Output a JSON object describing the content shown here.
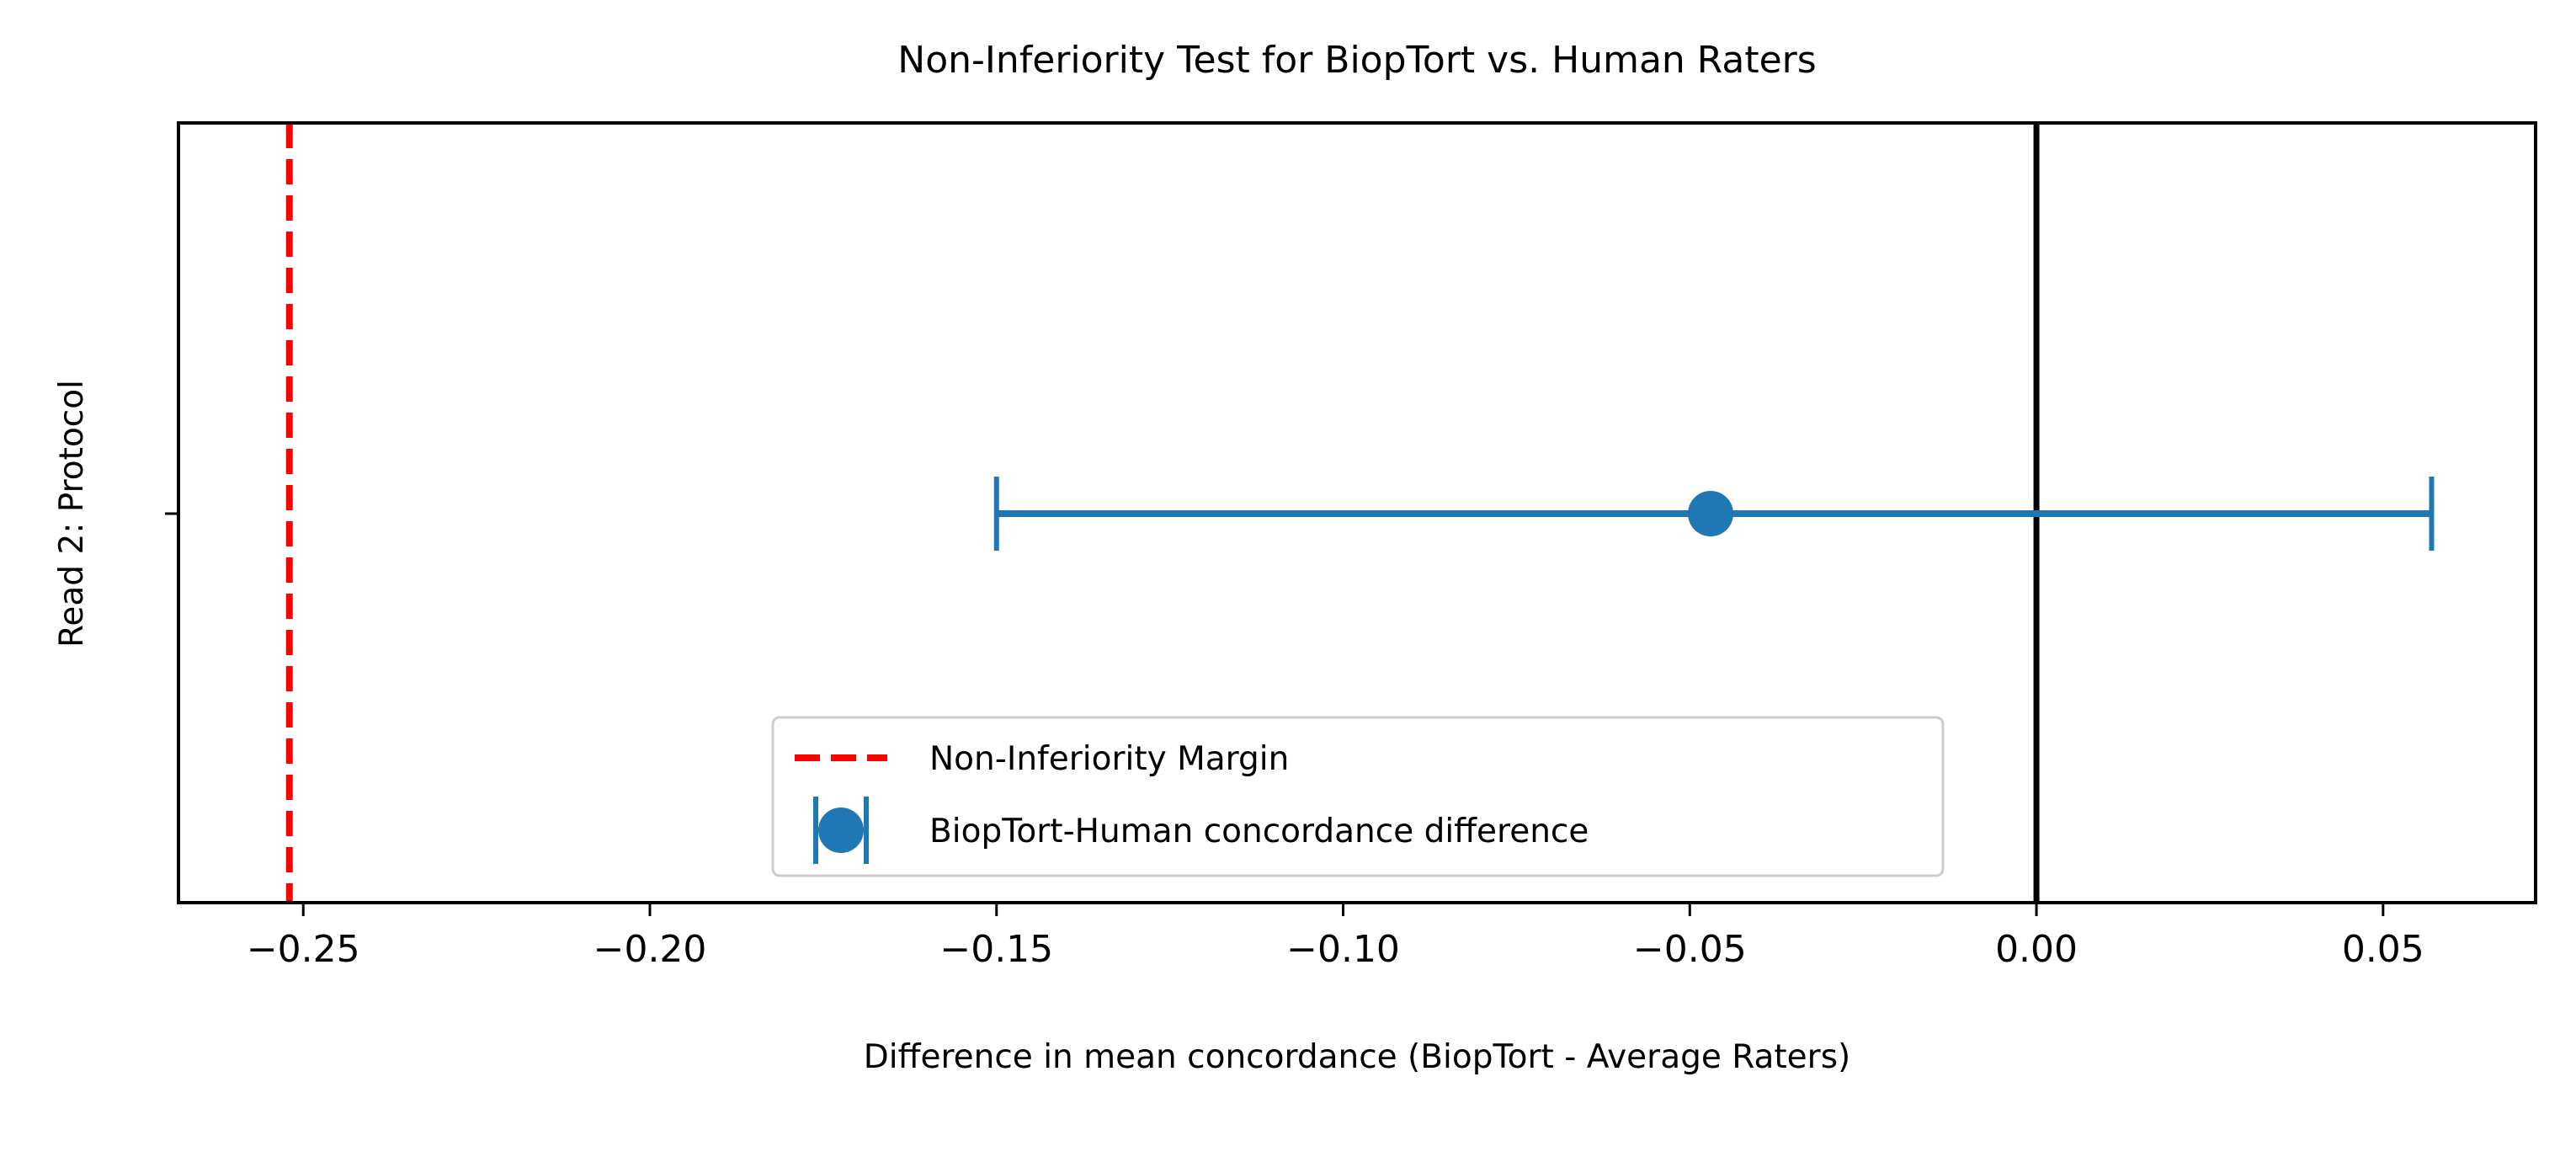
{
  "chart_data": {
    "type": "errorbar",
    "title": "Non-Inferiority Test for BiopTort vs. Human Raters",
    "xlabel": "Difference in mean concordance (BiopTort - Average Raters)",
    "ylabel": "Read 2: Protocol",
    "xlim": [
      -0.268,
      0.072
    ],
    "x_ticks": [
      -0.25,
      -0.2,
      -0.15,
      -0.1,
      -0.05,
      0.0,
      0.05
    ],
    "x_tick_labels": [
      "−0.25",
      "−0.20",
      "−0.15",
      "−0.10",
      "−0.05",
      "0.00",
      "0.05"
    ],
    "grid": false,
    "legend_position": "lower-center",
    "reference_lines": [
      {
        "name": "Non-Inferiority Margin",
        "x": -0.252,
        "style": "dashed",
        "color": "#ff0000"
      },
      {
        "name": "",
        "x": 0.0,
        "style": "solid",
        "color": "#000000"
      }
    ],
    "series": [
      {
        "name": "BiopTort-Human concordance difference",
        "color": "#1f77b4",
        "points": [
          {
            "category": "Read 2: Protocol",
            "x": -0.047,
            "ci_low": -0.15,
            "ci_high": 0.057
          }
        ]
      }
    ],
    "legend": [
      {
        "label": "Non-Inferiority Margin",
        "kind": "dashed-line",
        "color": "#ff0000"
      },
      {
        "label": "BiopTort-Human concordance difference",
        "kind": "errorbar-marker",
        "color": "#1f77b4"
      }
    ]
  }
}
